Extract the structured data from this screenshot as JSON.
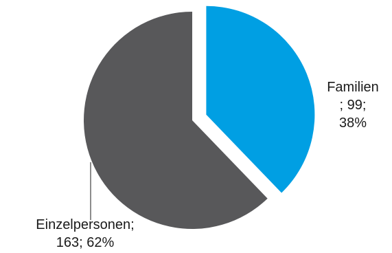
{
  "chart_data": {
    "type": "pie",
    "categories": [
      "Familien",
      "Einzelpersonen"
    ],
    "values": [
      99,
      163
    ],
    "percentages": [
      38,
      62
    ],
    "colors": [
      "#009fe3",
      "#58585a"
    ],
    "exploded_slice": "Familien",
    "labels": [
      {
        "lines": [
          "Familien",
          "; 99;",
          "38%"
        ]
      },
      {
        "lines": [
          "Einzelpersonen;",
          "163; 62%"
        ]
      }
    ]
  }
}
